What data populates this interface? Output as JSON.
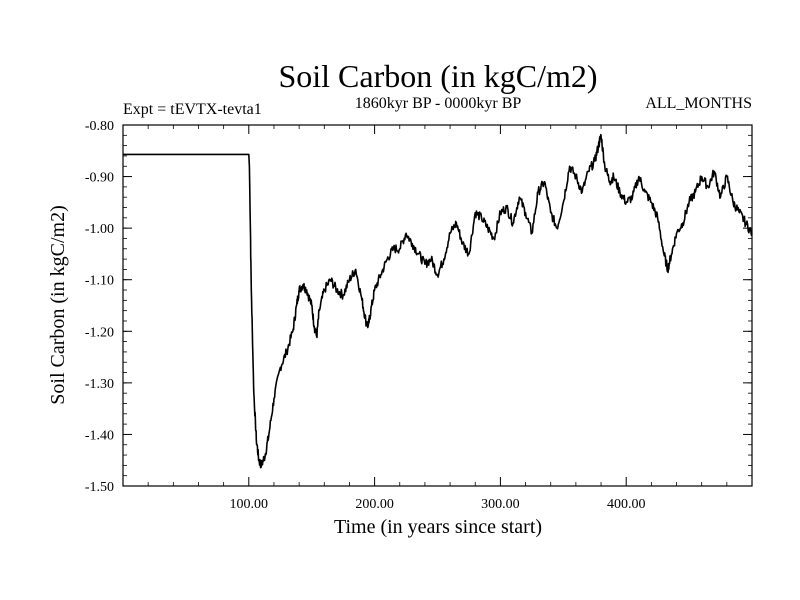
{
  "chart_data": {
    "type": "line",
    "title": "Soil Carbon (in kgC/m2)",
    "subtitle": "1860kyr BP - 0000kyr BP",
    "experiment_label": "Expt = tEVTX-tevta1",
    "period_label": "ALL_MONTHS",
    "xlabel": "Time (in years since start)",
    "ylabel": "Soil Carbon (in kgC/m2)",
    "xlim": [
      0,
      500
    ],
    "ylim": [
      -1.5,
      -0.8
    ],
    "grid": false,
    "x_ticks": [
      100,
      200,
      300,
      400
    ],
    "x_tick_labels": [
      "100.00",
      "200.00",
      "300.00",
      "400.00"
    ],
    "x_minor_step": 20,
    "y_ticks": [
      -1.5,
      -1.4,
      -1.3,
      -1.2,
      -1.1,
      -1.0,
      -0.9,
      -0.8
    ],
    "y_tick_labels": [
      "-1.50",
      "-1.40",
      "-1.30",
      "-1.20",
      "-1.10",
      "-1.00",
      "-0.90",
      "-0.80"
    ],
    "y_minor_step": 0.02,
    "series": [
      {
        "name": "Soil Carbon",
        "color": "#000000",
        "x": [
          0,
          100,
          100.5,
          102,
          104,
          106,
          108,
          110,
          113,
          116,
          120,
          125,
          130,
          135,
          138,
          140,
          143,
          146,
          150,
          152,
          154,
          156,
          160,
          165,
          170,
          175,
          180,
          185,
          190,
          193,
          195,
          197,
          200,
          205,
          210,
          215,
          220,
          225,
          230,
          235,
          240,
          245,
          250,
          255,
          260,
          265,
          270,
          275,
          280,
          285,
          290,
          295,
          300,
          305,
          310,
          315,
          320,
          325,
          330,
          335,
          340,
          345,
          350,
          355,
          360,
          365,
          370,
          375,
          378,
          380,
          383,
          387,
          390,
          395,
          400,
          405,
          410,
          415,
          420,
          425,
          430,
          433,
          436,
          440,
          445,
          450,
          455,
          460,
          465,
          470,
          475,
          480,
          485,
          490,
          495,
          500
        ],
        "values": [
          -0.857,
          -0.857,
          -0.88,
          -1.12,
          -1.32,
          -1.41,
          -1.45,
          -1.46,
          -1.44,
          -1.4,
          -1.33,
          -1.27,
          -1.24,
          -1.2,
          -1.15,
          -1.12,
          -1.11,
          -1.12,
          -1.15,
          -1.19,
          -1.21,
          -1.16,
          -1.12,
          -1.1,
          -1.12,
          -1.13,
          -1.1,
          -1.08,
          -1.14,
          -1.18,
          -1.19,
          -1.16,
          -1.12,
          -1.09,
          -1.06,
          -1.04,
          -1.04,
          -1.01,
          -1.03,
          -1.05,
          -1.07,
          -1.06,
          -1.09,
          -1.06,
          -1.01,
          -0.99,
          -1.03,
          -1.05,
          -0.97,
          -0.98,
          -1.0,
          -1.02,
          -0.97,
          -0.96,
          -0.99,
          -0.94,
          -0.97,
          -1.01,
          -0.93,
          -0.91,
          -0.97,
          -1.0,
          -0.95,
          -0.88,
          -0.9,
          -0.93,
          -0.89,
          -0.87,
          -0.84,
          -0.82,
          -0.88,
          -0.91,
          -0.9,
          -0.93,
          -0.95,
          -0.94,
          -0.9,
          -0.93,
          -0.95,
          -0.98,
          -1.05,
          -1.08,
          -1.05,
          -1.01,
          -0.99,
          -0.95,
          -0.93,
          -0.9,
          -0.92,
          -0.89,
          -0.94,
          -0.9,
          -0.95,
          -0.97,
          -0.99,
          -1.01
        ]
      }
    ]
  }
}
